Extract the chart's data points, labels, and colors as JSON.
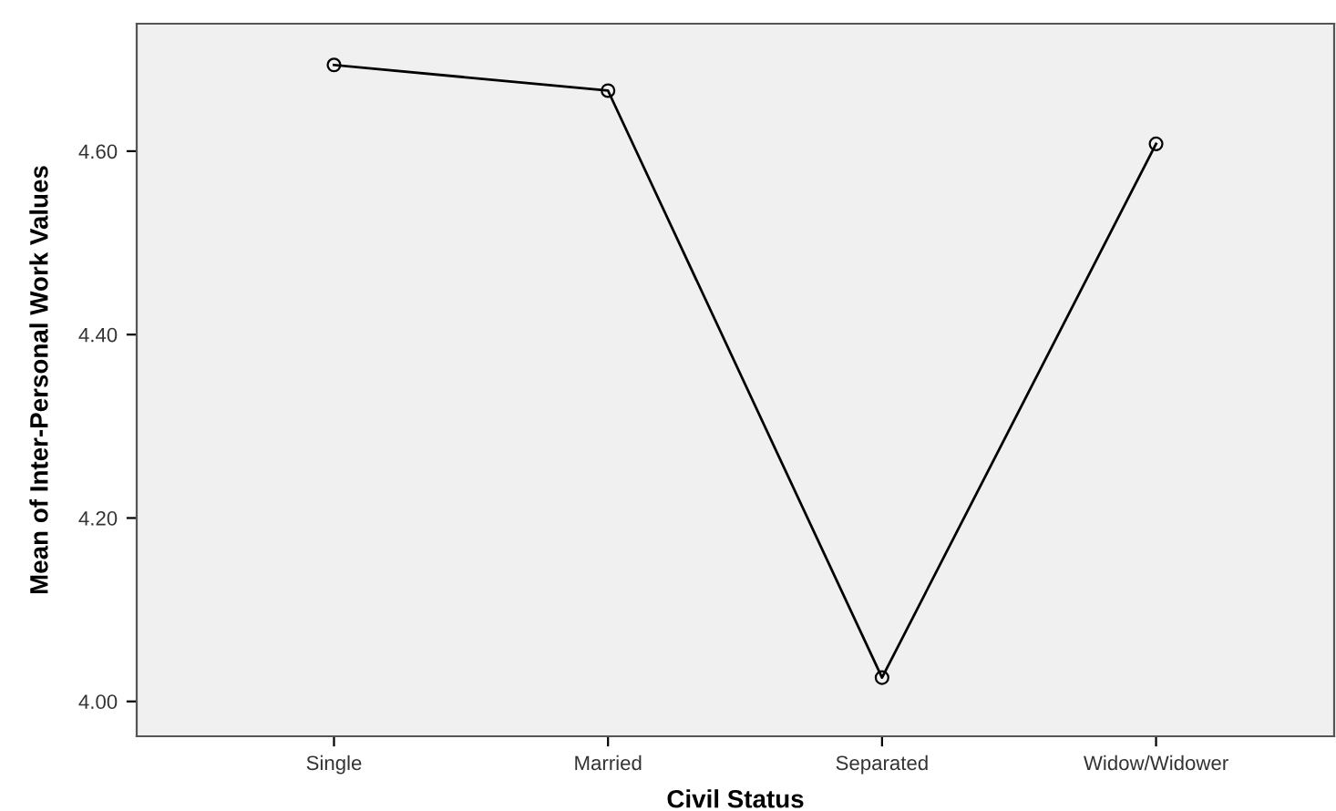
{
  "chart_data": {
    "type": "line",
    "xlabel": "Civil Status",
    "ylabel": "Mean of Inter-Personal Work Values",
    "categories": [
      "Single",
      "Married",
      "Separated",
      "Widow/Widower"
    ],
    "series": [
      {
        "color": "#000000",
        "values": [
          4.694,
          4.666,
          4.026,
          4.608
        ]
      }
    ],
    "ylim": [
      3.962,
      4.739
    ],
    "yticks": [
      {
        "value": 4.0,
        "label": "4.00"
      },
      {
        "value": 4.2,
        "label": "4.20"
      },
      {
        "value": 4.4,
        "label": "4.40"
      },
      {
        "value": 4.6,
        "label": "4.60"
      }
    ],
    "marker": "circle",
    "line_style": "solid",
    "grid": false
  }
}
